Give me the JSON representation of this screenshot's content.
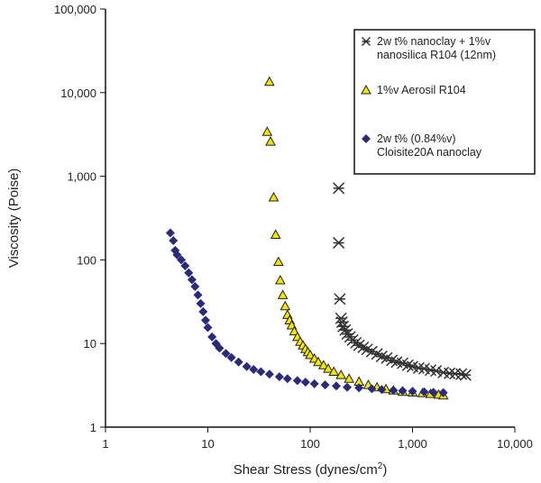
{
  "chart_data": {
    "type": "scatter",
    "title": "",
    "xlabel": "Shear Stress (dynes/cm",
    "xlabel_sup": "2",
    "xlabel_end": ")",
    "ylabel": "Viscosity (Poise)",
    "xscale": "log",
    "yscale": "log",
    "xlim": [
      1,
      10000
    ],
    "ylim": [
      1,
      100000
    ],
    "xticks": [
      1,
      10,
      100,
      1000,
      10000
    ],
    "xtick_labels": [
      "1",
      "10",
      "100",
      "1,000",
      "10,000"
    ],
    "yticks": [
      1,
      10,
      100,
      1000,
      10000,
      100000
    ],
    "ytick_labels": [
      "1",
      "10",
      "100",
      "1,000",
      "10,000",
      "100,000"
    ],
    "legend_position": "top-right",
    "series": [
      {
        "name": "2w t% nanoclay + 1%v",
        "name2": "nanosilica R104 (12nm)",
        "marker": "asterisk",
        "color": "#333333",
        "points": [
          [
            190,
            720
          ],
          [
            190,
            160
          ],
          [
            195,
            34
          ],
          [
            200,
            20
          ],
          [
            205,
            18
          ],
          [
            210,
            16
          ],
          [
            220,
            14.5
          ],
          [
            230,
            13
          ],
          [
            245,
            12
          ],
          [
            260,
            11
          ],
          [
            280,
            10.2
          ],
          [
            300,
            9.5
          ],
          [
            330,
            9
          ],
          [
            360,
            8.5
          ],
          [
            400,
            8
          ],
          [
            450,
            7.5
          ],
          [
            500,
            7
          ],
          [
            560,
            6.7
          ],
          [
            630,
            6.3
          ],
          [
            700,
            6
          ],
          [
            800,
            5.8
          ],
          [
            900,
            5.5
          ],
          [
            1000,
            5.3
          ],
          [
            1150,
            5.1
          ],
          [
            1300,
            5
          ],
          [
            1500,
            4.8
          ],
          [
            1700,
            4.7
          ],
          [
            2000,
            4.5
          ],
          [
            2300,
            4.4
          ],
          [
            2600,
            4.35
          ],
          [
            3000,
            4.3
          ],
          [
            3300,
            4.2
          ]
        ]
      },
      {
        "name": "1%v Aerosil R104",
        "name2": "",
        "marker": "triangle",
        "color": "#f2e600",
        "points": [
          [
            40,
            13500
          ],
          [
            38,
            3400
          ],
          [
            41,
            2600
          ],
          [
            44,
            560
          ],
          [
            46,
            200
          ],
          [
            49,
            95
          ],
          [
            51,
            57
          ],
          [
            54,
            38
          ],
          [
            57,
            28
          ],
          [
            60,
            22
          ],
          [
            63,
            19
          ],
          [
            66,
            16.5
          ],
          [
            70,
            14
          ],
          [
            75,
            12
          ],
          [
            80,
            10.5
          ],
          [
            85,
            9.5
          ],
          [
            90,
            8.6
          ],
          [
            95,
            7.9
          ],
          [
            100,
            7.3
          ],
          [
            110,
            6.6
          ],
          [
            120,
            6
          ],
          [
            135,
            5.5
          ],
          [
            150,
            5
          ],
          [
            170,
            4.6
          ],
          [
            200,
            4.2
          ],
          [
            240,
            3.8
          ],
          [
            300,
            3.5
          ],
          [
            370,
            3.2
          ],
          [
            450,
            3.0
          ],
          [
            550,
            2.85
          ],
          [
            650,
            2.75
          ],
          [
            800,
            2.65
          ],
          [
            1000,
            2.6
          ],
          [
            1250,
            2.55
          ],
          [
            1500,
            2.5
          ],
          [
            1800,
            2.45
          ],
          [
            2000,
            2.4
          ]
        ]
      },
      {
        "name": "2w t% (0.84%v)",
        "name2": "Cloisite20A nanoclay",
        "marker": "diamond",
        "color": "#2b2a7a",
        "points": [
          [
            4.3,
            210
          ],
          [
            4.6,
            170
          ],
          [
            4.8,
            130
          ],
          [
            5.0,
            115
          ],
          [
            5.5,
            100
          ],
          [
            6,
            85
          ],
          [
            6.5,
            70
          ],
          [
            7,
            58
          ],
          [
            7.5,
            48
          ],
          [
            8,
            38
          ],
          [
            8.5,
            30
          ],
          [
            9,
            24
          ],
          [
            9.5,
            19
          ],
          [
            10,
            15.5
          ],
          [
            11,
            12
          ],
          [
            12,
            10
          ],
          [
            13,
            8.8
          ],
          [
            15,
            7.6
          ],
          [
            17,
            6.8
          ],
          [
            20,
            6
          ],
          [
            24,
            5.3
          ],
          [
            28,
            4.9
          ],
          [
            33,
            4.6
          ],
          [
            40,
            4.3
          ],
          [
            50,
            4
          ],
          [
            60,
            3.8
          ],
          [
            75,
            3.6
          ],
          [
            90,
            3.45
          ],
          [
            110,
            3.3
          ],
          [
            140,
            3.2
          ],
          [
            180,
            3.1
          ],
          [
            230,
            3.0
          ],
          [
            300,
            2.95
          ],
          [
            400,
            2.88
          ],
          [
            500,
            2.82
          ],
          [
            650,
            2.77
          ],
          [
            800,
            2.72
          ],
          [
            1000,
            2.68
          ],
          [
            1300,
            2.64
          ],
          [
            1600,
            2.61
          ],
          [
            2000,
            2.58
          ]
        ]
      }
    ]
  }
}
